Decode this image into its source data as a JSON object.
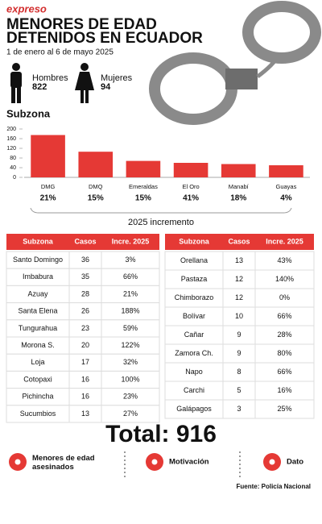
{
  "header": {
    "logo": "expreso",
    "title_lines": [
      "MENORES DE EDAD",
      "DETENIDOS EN ECUADOR"
    ],
    "subtitle": "1 de enero al 6 de mayo 2025",
    "men_label": "Hombres",
    "men_count": "822",
    "women_label": "Mujeres",
    "women_count": "94"
  },
  "chart_data": {
    "type": "bar",
    "title": "Subzona",
    "categories": [
      "DMG",
      "DMQ",
      "Emeraldas",
      "El Oro",
      "Manabí",
      "Guayas"
    ],
    "values": [
      175,
      106,
      68,
      60,
      55,
      50
    ],
    "color": "#e53935",
    "ylim": [
      0,
      200
    ],
    "yticks": [
      0,
      40,
      80,
      120,
      160,
      200
    ],
    "increment_labels": [
      "21%",
      "15%",
      "15%",
      "41%",
      "18%",
      "4%"
    ],
    "increment_caption": "2025 incremento"
  },
  "tables": [
    {
      "header": [
        "Subzona",
        "Casos",
        "Incre. 2025"
      ],
      "rows": [
        [
          "Santo Domingo",
          "36",
          "3%"
        ],
        [
          "Imbabura",
          "35",
          "66%"
        ],
        [
          "Azuay",
          "28",
          "21%"
        ],
        [
          "Santa Elena",
          "26",
          "188%"
        ],
        [
          "Tungurahua",
          "23",
          "59%"
        ],
        [
          "Morona S.",
          "20",
          "122%"
        ],
        [
          "Loja",
          "17",
          "32%"
        ],
        [
          "Cotopaxi",
          "16",
          "100%"
        ],
        [
          "Pichincha",
          "16",
          "23%"
        ],
        [
          "Sucumbios",
          "13",
          "27%"
        ]
      ]
    },
    {
      "header": [
        "Subzona",
        "Casos",
        "Incre. 2025"
      ],
      "rows": [
        [
          "Orellana",
          "13",
          "43%"
        ],
        [
          "Pastaza",
          "12",
          "140%"
        ],
        [
          "Chimborazo",
          "12",
          "0%"
        ],
        [
          "Bolívar",
          "10",
          "66%"
        ],
        [
          "Cañar",
          "9",
          "28%"
        ],
        [
          "Zamora Ch.",
          "9",
          "80%"
        ],
        [
          "Napo",
          "8",
          "66%"
        ],
        [
          "Carchi",
          "5",
          "16%"
        ],
        [
          "Galápagos",
          "3",
          "25%"
        ]
      ]
    }
  ],
  "total": "Total: 916",
  "footer": {
    "items": [
      "Menores de edad asesinados",
      "Motivación",
      "Dato"
    ],
    "source": "Fuente: Policía Nacional"
  }
}
